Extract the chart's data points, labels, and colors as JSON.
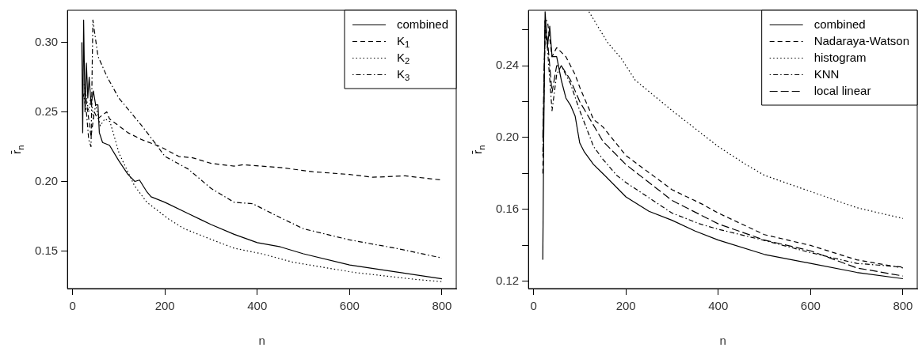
{
  "chart_data": [
    {
      "type": "line",
      "xlabel": "n",
      "ylabel": "r̄$_{n}$",
      "legend": "top right",
      "grid": false,
      "xlim": [
        -11,
        831
      ],
      "xticks": [
        0,
        200,
        400,
        600,
        800
      ],
      "ylim": [
        0.123,
        0.323
      ],
      "yticks": [
        0.15,
        {
          "value": 0.2,
          "label": "0.20"
        },
        0.25,
        {
          "value": 0.3,
          "label": "0.30"
        }
      ],
      "series": [
        {
          "name": "combined",
          "color": "#000000",
          "line_style": "solid",
          "x": [
            20,
            22,
            24,
            27,
            30,
            33,
            36,
            40,
            45,
            50,
            55,
            58,
            65,
            80,
            100,
            120,
            135,
            145,
            160,
            170,
            200,
            250,
            300,
            350,
            400,
            450,
            500,
            600,
            700,
            800
          ],
          "values": [
            0.3,
            0.235,
            0.316,
            0.25,
            0.285,
            0.26,
            0.275,
            0.255,
            0.265,
            0.255,
            0.255,
            0.235,
            0.228,
            0.226,
            0.215,
            0.205,
            0.2,
            0.201,
            0.193,
            0.189,
            0.185,
            0.177,
            0.169,
            0.162,
            0.156,
            0.153,
            0.148,
            0.14,
            0.135,
            0.13
          ]
        },
        {
          "name": "K$_{1}$",
          "color": "#000000",
          "line_style": "dashed",
          "x": [
            22,
            27,
            33,
            40,
            47,
            54,
            74,
            80,
            120,
            150,
            190,
            230,
            260,
            300,
            350,
            370,
            450,
            520,
            600,
            650,
            720,
            800
          ],
          "values": [
            0.26,
            0.265,
            0.25,
            0.232,
            0.25,
            0.245,
            0.25,
            0.245,
            0.235,
            0.23,
            0.225,
            0.218,
            0.217,
            0.213,
            0.211,
            0.212,
            0.21,
            0.207,
            0.205,
            0.203,
            0.204,
            0.201
          ]
        },
        {
          "name": "K$_{2}$",
          "color": "#000000",
          "line_style": "dotted",
          "x": [
            25,
            30,
            35,
            40,
            45,
            50,
            60,
            70,
            81,
            101,
            134,
            161,
            208,
            242,
            303,
            350,
            410,
            477,
            612,
            746,
            800
          ],
          "values": [
            0.27,
            0.26,
            0.25,
            0.262,
            0.245,
            0.255,
            0.24,
            0.245,
            0.243,
            0.22,
            0.197,
            0.185,
            0.173,
            0.166,
            0.158,
            0.152,
            0.148,
            0.142,
            0.1345,
            0.1295,
            0.128
          ]
        },
        {
          "name": "K$_{3}$",
          "color": "#000000",
          "line_style": "dashdot",
          "x": [
            25,
            30,
            35,
            40,
            44,
            55,
            75,
            100,
            125,
            150,
            180,
            200,
            250,
            300,
            350,
            390,
            450,
            500,
            550,
            600,
            700,
            800
          ],
          "values": [
            0.26,
            0.25,
            0.23,
            0.225,
            0.316,
            0.29,
            0.275,
            0.26,
            0.25,
            0.24,
            0.227,
            0.218,
            0.209,
            0.195,
            0.185,
            0.184,
            0.174,
            0.166,
            0.162,
            0.158,
            0.152,
            0.145
          ]
        }
      ]
    },
    {
      "type": "line",
      "xlabel": "n",
      "ylabel": "r̄$_{n}$",
      "legend": "top right",
      "grid": false,
      "xlim": [
        -11,
        831
      ],
      "xticks": [
        0,
        200,
        400,
        600,
        800
      ],
      "ylim": [
        0.116,
        0.2708
      ],
      "yticks": [
        0.12,
        {
          "value": 0.14,
          "label": null
        },
        0.16,
        {
          "value": 0.18,
          "label": null
        },
        {
          "value": 0.2,
          "label": "0.20"
        },
        {
          "value": 0.22,
          "label": null
        },
        0.24,
        {
          "value": 0.26,
          "label": null
        }
      ],
      "series": [
        {
          "name": "combined",
          "color": "#000000",
          "line_style": "solid",
          "x": [
            20,
            22,
            25,
            30,
            35,
            40,
            50,
            60,
            70,
            80,
            90,
            100,
            110,
            130,
            150,
            200,
            250,
            300,
            350,
            400,
            500,
            600,
            700,
            800
          ],
          "values": [
            0.132,
            0.2,
            0.27,
            0.25,
            0.262,
            0.245,
            0.245,
            0.232,
            0.222,
            0.218,
            0.212,
            0.197,
            0.192,
            0.185,
            0.18,
            0.167,
            0.159,
            0.154,
            0.148,
            0.143,
            0.135,
            0.13,
            0.125,
            0.1215
          ]
        },
        {
          "name": "Nadaraya-Watson",
          "color": "#000000",
          "line_style": "dashed",
          "x": [
            20,
            25,
            30,
            40,
            50,
            70,
            90,
            100,
            130,
            150,
            200,
            300,
            365,
            400,
            500,
            600,
            700,
            800
          ],
          "values": [
            0.18,
            0.265,
            0.265,
            0.245,
            0.25,
            0.245,
            0.235,
            0.228,
            0.21,
            0.206,
            0.19,
            0.171,
            0.163,
            0.158,
            0.146,
            0.14,
            0.132,
            0.1275
          ]
        },
        {
          "name": "histogram",
          "color": "#000000",
          "line_style": "dotted",
          "x": [
            120,
            160,
            190,
            220,
            300,
            400,
            460,
            500,
            600,
            700,
            800
          ],
          "values": [
            0.27,
            0.253,
            0.244,
            0.232,
            0.215,
            0.195,
            0.185,
            0.179,
            0.17,
            0.161,
            0.155
          ]
        },
        {
          "name": "KNN",
          "color": "#000000",
          "line_style": "dashdot",
          "x": [
            20,
            25,
            30,
            40,
            50,
            60,
            80,
            100,
            130,
            150,
            180,
            200,
            300,
            360,
            400,
            500,
            600,
            700,
            800
          ],
          "values": [
            0.19,
            0.26,
            0.25,
            0.215,
            0.235,
            0.24,
            0.23,
            0.215,
            0.195,
            0.188,
            0.179,
            0.175,
            0.158,
            0.152,
            0.149,
            0.1428,
            0.136,
            0.13,
            0.128
          ]
        },
        {
          "name": "local linear",
          "color": "#000000",
          "line_style": "longdash",
          "x": [
            20,
            25,
            30,
            40,
            50,
            60,
            80,
            100,
            150,
            200,
            300,
            400,
            500,
            600,
            700,
            800
          ],
          "values": [
            0.2,
            0.265,
            0.255,
            0.225,
            0.24,
            0.24,
            0.232,
            0.22,
            0.198,
            0.185,
            0.165,
            0.152,
            0.143,
            0.137,
            0.1275,
            0.123
          ]
        }
      ]
    }
  ]
}
